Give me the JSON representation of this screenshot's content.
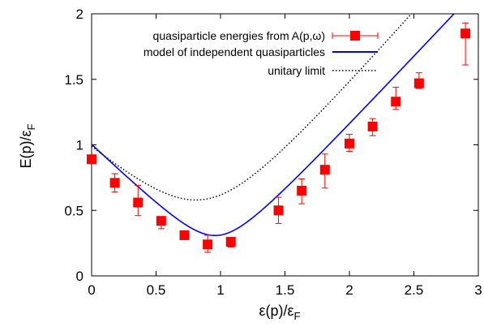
{
  "chart_data": {
    "type": "scatter",
    "xlabel": "ε(p)/ε",
    "xlabel_sub": "F",
    "ylabel": "E(p)/ε",
    "ylabel_sub": "F",
    "xlim": [
      0,
      3
    ],
    "ylim": [
      0,
      2
    ],
    "x_ticks": [
      0,
      0.5,
      1,
      1.5,
      2,
      2.5,
      3
    ],
    "x_tick_labels": [
      "0",
      "0.5",
      "1",
      "1.5",
      "2",
      "2.5",
      "3"
    ],
    "y_ticks": [
      0,
      0.5,
      1,
      1.5,
      2
    ],
    "y_tick_labels": [
      "0",
      "0.5",
      "1",
      "1.5",
      "2"
    ],
    "grid": false,
    "legend_position": "top-right",
    "series": [
      {
        "name": "quasiparticle energies from A(p,ω)",
        "kind": "points-with-errorbars",
        "color": "#ff0000",
        "x": [
          0.0,
          0.18,
          0.36,
          0.54,
          0.72,
          0.9,
          1.08,
          1.45,
          1.63,
          1.81,
          2.0,
          2.18,
          2.36,
          2.54,
          2.9
        ],
        "y": [
          0.89,
          0.71,
          0.56,
          0.42,
          0.31,
          0.24,
          0.26,
          0.5,
          0.65,
          0.81,
          1.01,
          1.14,
          1.33,
          1.47,
          1.85
        ],
        "yerr_low": [
          0.86,
          0.64,
          0.46,
          0.36,
          0.28,
          0.18,
          0.22,
          0.4,
          0.55,
          0.67,
          0.95,
          1.07,
          1.27,
          1.43,
          1.61
        ],
        "yerr_high": [
          0.92,
          0.78,
          0.69,
          0.45,
          0.34,
          0.31,
          0.29,
          0.6,
          0.74,
          0.93,
          1.08,
          1.2,
          1.44,
          1.55,
          1.93
        ]
      },
      {
        "name": "model of independent quasiparticles",
        "kind": "line",
        "color": "#0000ff",
        "style": "solid",
        "model": {
          "mu": 0.97,
          "delta": 0.26,
          "u": 0.05
        }
      },
      {
        "name": "unitary limit",
        "kind": "line",
        "color": "#000000",
        "style": "dotted",
        "model": {
          "mu": 0.87,
          "delta": 0.47,
          "u": 0.13
        }
      }
    ]
  }
}
